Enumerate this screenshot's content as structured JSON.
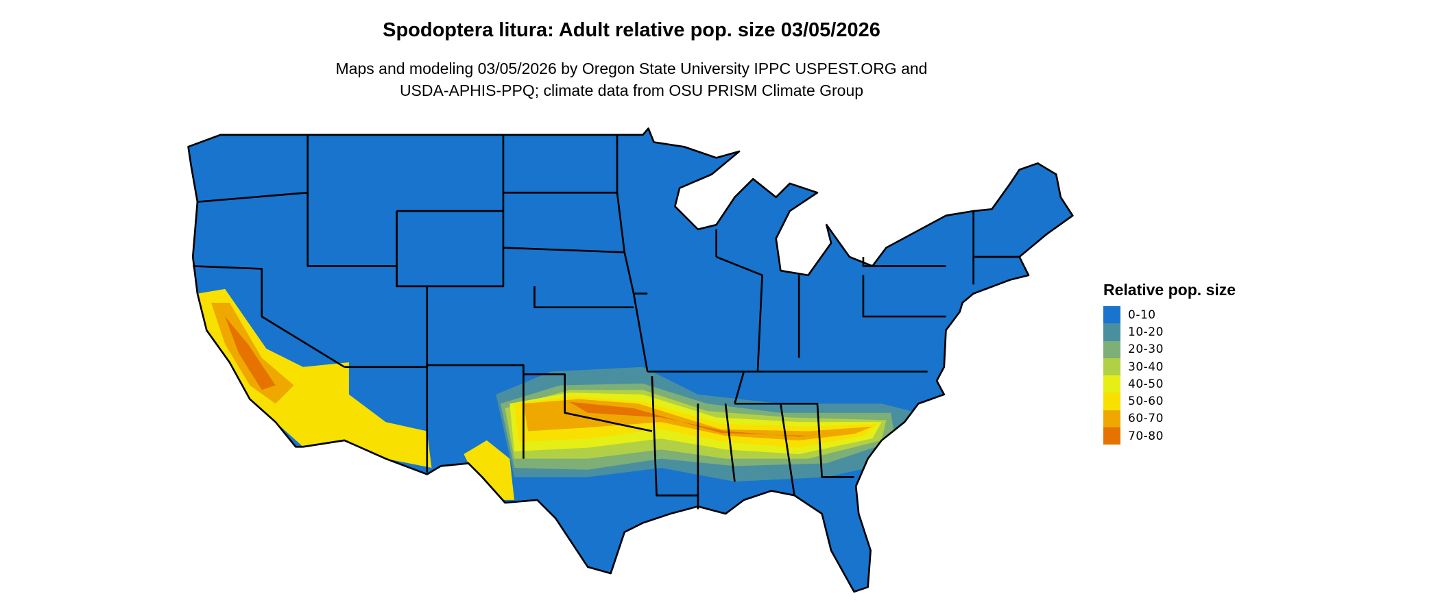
{
  "title": "Spodoptera litura: Adult relative pop. size 03/05/2026",
  "subtitle_lines": [
    "Maps and modeling 03/05/2026 by Oregon State University IPPC USPEST.ORG and",
    "USDA-APHIS-PPQ; climate data from OSU PRISM Climate Group"
  ],
  "legend": {
    "title": "Relative pop. size",
    "items": [
      {
        "label": "0-10",
        "color": "#1874CD"
      },
      {
        "label": "10-20",
        "color": "#4A8FA0"
      },
      {
        "label": "20-30",
        "color": "#7DAF76"
      },
      {
        "label": "30-40",
        "color": "#B2D045"
      },
      {
        "label": "40-50",
        "color": "#E5EF16"
      },
      {
        "label": "50-60",
        "color": "#F8E000"
      },
      {
        "label": "60-70",
        "color": "#EFA800"
      },
      {
        "label": "70-80",
        "color": "#E67300"
      }
    ]
  },
  "map": {
    "region": "Contiguous United States",
    "boundaries": "state outlines, black",
    "high_values_region": "southern band (CA Central Valley, southern AZ, TX/OK border, Gulf states to SC)"
  }
}
